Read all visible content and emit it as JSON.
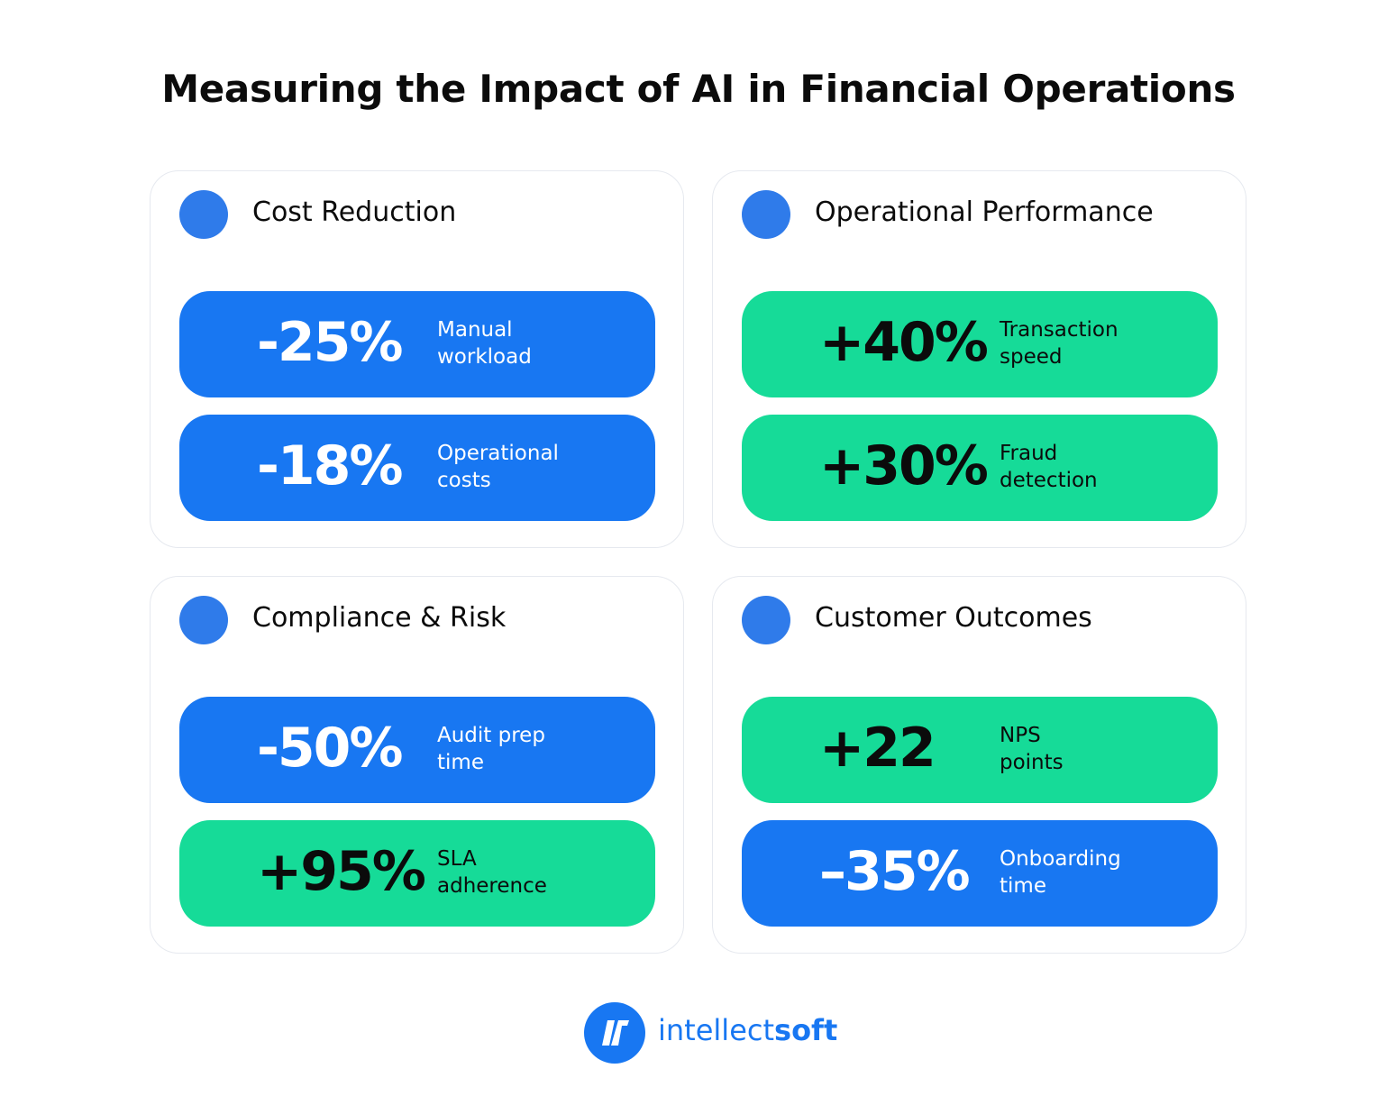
{
  "title": "Measuring the Impact of AI in Financial Operations",
  "cards": [
    {
      "title": "Cost Reduction",
      "metrics": [
        {
          "value": "-25%",
          "label": [
            "Manual",
            "workload"
          ],
          "color": "#1877f2"
        },
        {
          "value": "-18%",
          "label": [
            "Operational",
            "costs"
          ],
          "color": "#1877f2"
        }
      ]
    },
    {
      "title": "Operational Performance",
      "metrics": [
        {
          "value": "+40%",
          "label": [
            "Transaction",
            "speed"
          ],
          "color": "#16db98"
        },
        {
          "value": "+30%",
          "label": [
            "Fraud",
            "detection"
          ],
          "color": "#16db98"
        }
      ]
    },
    {
      "title": "Compliance & Risk",
      "metrics": [
        {
          "value": "-50%",
          "label": [
            "Audit prep",
            "time"
          ],
          "color": "#1877f2"
        },
        {
          "value": "+95%",
          "label": [
            "SLA",
            "adherence"
          ],
          "color": "#16db98"
        }
      ]
    },
    {
      "title": "Customer Outcomes",
      "metrics": [
        {
          "value": "+22",
          "label": [
            "NPS",
            "points"
          ],
          "color": "#16db98"
        },
        {
          "value": "–35%",
          "label": [
            "Onboarding",
            "time"
          ],
          "color": "#1877f2"
        }
      ]
    }
  ],
  "logo": [
    "intellect",
    "soft"
  ]
}
